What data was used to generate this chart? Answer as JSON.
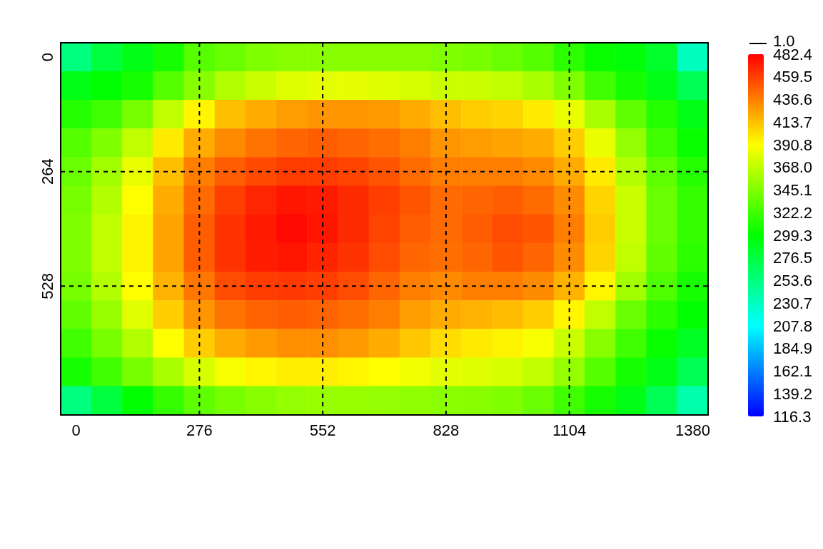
{
  "chart_data": {
    "type": "heatmap",
    "categories": [
      "0",
      null,
      null,
      null,
      "276",
      null,
      null,
      null,
      "552",
      null,
      null,
      null,
      "828",
      null,
      null,
      null,
      "1104",
      null,
      null,
      null,
      "1380"
    ],
    "y_categories": [
      "0",
      null,
      null,
      null,
      "264",
      null,
      null,
      null,
      "528",
      null,
      null,
      null,
      null
    ],
    "clim": [
      116.3,
      482.4
    ],
    "cticks": [
      116.3,
      139.2,
      162.1,
      184.9,
      207.8,
      230.7,
      253.6,
      276.5,
      299.3,
      322.2,
      345.1,
      {
        "value": 368.0,
        "label": "368.0"
      },
      390.8,
      413.7,
      436.6,
      459.5,
      482.4
    ],
    "grid": true,
    "annotations": [
      "1.0"
    ],
    "cells": [
      [
        254,
        277,
        292,
        307,
        330,
        337,
        345,
        348,
        348,
        348,
        348,
        348,
        345,
        342,
        337,
        330,
        315,
        302,
        296,
        284,
        231
      ],
      [
        292,
        299,
        307,
        330,
        348,
        363,
        372,
        379,
        382,
        382,
        379,
        376,
        372,
        372,
        368,
        360,
        345,
        322,
        307,
        292,
        269
      ],
      [
        312,
        322,
        342,
        368,
        394,
        414,
        421,
        426,
        429,
        429,
        427,
        421,
        414,
        409,
        406,
        398,
        383,
        360,
        333,
        312,
        292
      ],
      [
        330,
        345,
        368,
        398,
        421,
        433,
        441,
        446,
        449,
        446,
        443,
        437,
        429,
        426,
        424,
        421,
        409,
        383,
        352,
        322,
        302
      ],
      [
        337,
        357,
        383,
        414,
        437,
        449,
        456,
        461,
        461,
        458,
        452,
        444,
        437,
        437,
        437,
        433,
        421,
        398,
        363,
        333,
        312
      ],
      [
        342,
        363,
        391,
        421,
        444,
        460,
        469,
        475,
        473,
        467,
        460,
        452,
        444,
        446,
        449,
        444,
        432,
        406,
        372,
        337,
        318
      ],
      [
        345,
        368,
        395,
        424,
        449,
        464,
        473,
        479,
        475,
        467,
        458,
        449,
        444,
        449,
        455,
        452,
        437,
        409,
        372,
        337,
        318
      ],
      [
        345,
        368,
        395,
        424,
        449,
        464,
        472,
        475,
        470,
        464,
        455,
        446,
        443,
        446,
        452,
        446,
        432,
        406,
        368,
        334,
        315
      ],
      [
        342,
        363,
        391,
        418,
        440,
        455,
        461,
        462,
        460,
        455,
        446,
        437,
        433,
        437,
        437,
        432,
        418,
        394,
        357,
        327,
        307
      ],
      [
        334,
        354,
        380,
        409,
        429,
        441,
        447,
        449,
        447,
        443,
        437,
        426,
        421,
        418,
        415,
        409,
        394,
        368,
        337,
        315,
        299
      ],
      [
        322,
        342,
        363,
        391,
        409,
        421,
        427,
        431,
        431,
        427,
        421,
        411,
        403,
        398,
        395,
        388,
        372,
        348,
        322,
        302,
        287
      ],
      [
        307,
        322,
        342,
        360,
        376,
        388,
        394,
        397,
        397,
        394,
        391,
        386,
        382,
        379,
        376,
        368,
        352,
        330,
        307,
        292,
        269
      ],
      [
        254,
        277,
        299,
        318,
        333,
        342,
        348,
        352,
        354,
        354,
        352,
        351,
        349,
        348,
        345,
        337,
        322,
        307,
        292,
        269,
        238
      ]
    ]
  }
}
